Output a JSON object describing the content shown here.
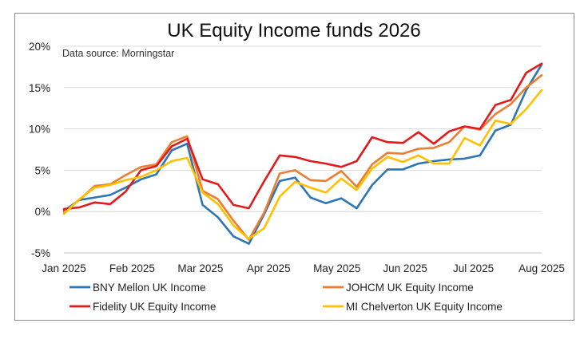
{
  "chart_data": {
    "type": "line",
    "title": "UK Equity Income funds 2026",
    "annotation": "Data source: Morningstar",
    "xlabel": "",
    "ylabel": "",
    "x": [
      0,
      1,
      2,
      3,
      4,
      5,
      6,
      7,
      8,
      9,
      10,
      11,
      12,
      13,
      14,
      15,
      16,
      17,
      18,
      19,
      20,
      21,
      22,
      23,
      24,
      25,
      26,
      27,
      28,
      29,
      30,
      31
    ],
    "x_tick_labels": [
      "Jan 2025",
      "Feb 2025",
      "Mar 2025",
      "Apr 2025",
      "May 2025",
      "Jun 2025",
      "Jul 2025",
      "Aug 2025"
    ],
    "y_tick_labels": [
      "20%",
      "15%",
      "10%",
      "5%",
      "0%",
      "-5%"
    ],
    "ylim": [
      -5,
      20
    ],
    "grid": "horizontal",
    "legend_position": "bottom",
    "series": [
      {
        "name": "BNY Mellon UK Income",
        "color": "#2e75b6",
        "values": [
          0.1,
          1.4,
          1.7,
          2.0,
          2.9,
          3.9,
          4.5,
          7.4,
          8.2,
          0.8,
          -0.7,
          -3.0,
          -3.9,
          -0.3,
          3.7,
          4.1,
          1.7,
          1.0,
          1.6,
          0.4,
          3.2,
          5.1,
          5.1,
          5.8,
          6.1,
          6.3,
          6.4,
          6.8,
          9.8,
          10.5,
          14.7,
          17.8
        ]
      },
      {
        "name": "JOHCM UK Equity Income",
        "color": "#ed7d31",
        "values": [
          -0.1,
          1.4,
          3.1,
          3.3,
          4.4,
          5.4,
          5.7,
          8.4,
          9.1,
          2.5,
          1.5,
          -1.1,
          -3.4,
          -0.1,
          4.6,
          5.0,
          3.8,
          3.7,
          4.9,
          3.0,
          5.7,
          7.1,
          7.0,
          7.6,
          7.7,
          8.4,
          10.3,
          9.9,
          11.8,
          13.0,
          15.0,
          16.5
        ]
      },
      {
        "name": "Fidelity UK Equity Income",
        "color": "#e31a1c",
        "values": [
          0.3,
          0.5,
          1.1,
          0.9,
          2.4,
          5.0,
          5.5,
          7.9,
          8.8,
          3.9,
          3.3,
          0.8,
          0.4,
          3.7,
          6.8,
          6.6,
          6.1,
          5.8,
          5.4,
          6.1,
          9.0,
          8.4,
          8.3,
          9.6,
          8.2,
          9.7,
          10.3,
          10.0,
          12.9,
          13.5,
          16.8,
          17.9
        ]
      },
      {
        "name": "MI Chelverton UK Equity Income",
        "color": "#ffc000",
        "values": [
          -0.3,
          1.5,
          2.9,
          3.2,
          3.8,
          4.2,
          5.0,
          6.1,
          6.5,
          2.3,
          0.9,
          -1.7,
          -3.3,
          -2.0,
          1.8,
          3.6,
          2.9,
          2.3,
          4.0,
          2.6,
          5.2,
          6.6,
          6.0,
          6.8,
          5.8,
          5.8,
          8.9,
          8.0,
          11.0,
          10.6,
          12.4,
          14.7
        ]
      }
    ]
  }
}
